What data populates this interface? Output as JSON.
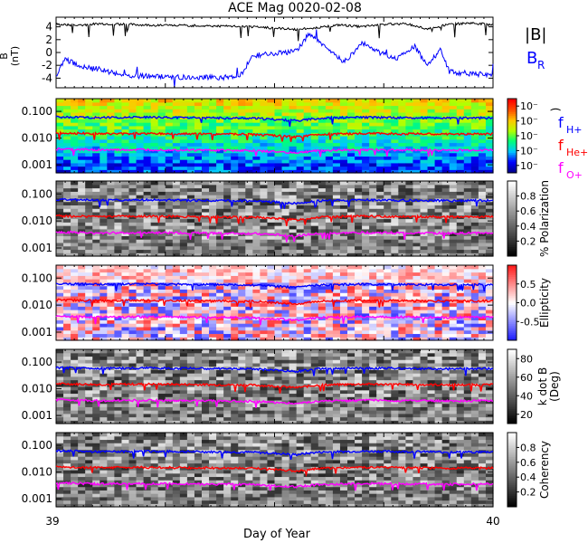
{
  "title": "ACE Mag 0020-02-08",
  "chart_data": [
    {
      "type": "line",
      "panel": "magnetic-field",
      "ylabel": [
        "B",
        "(nT)"
      ],
      "ylim": [
        -5.5,
        5.5
      ],
      "yticks": [
        4,
        2,
        0,
        -2,
        -4
      ],
      "yticklabels": [
        "4",
        "2",
        "0",
        "-2",
        "-4"
      ],
      "series": [
        {
          "name": "|B|",
          "color": "#000000",
          "x": [
            39.0,
            39.05,
            39.1,
            39.2,
            39.3,
            39.4,
            39.45,
            39.5,
            39.55,
            39.6,
            39.65,
            39.7,
            39.75,
            39.8,
            39.85,
            39.9,
            39.95,
            40.0
          ],
          "values": [
            4.4,
            4.2,
            4.5,
            4.3,
            4.2,
            4.1,
            4.0,
            3.8,
            3.6,
            3.9,
            4.3,
            4.0,
            4.4,
            4.5,
            3.7,
            4.4,
            4.6,
            4.3
          ]
        },
        {
          "name": "B",
          "subscript": "R",
          "color": "#0000ff",
          "x": [
            39.0,
            39.02,
            39.05,
            39.1,
            39.15,
            39.2,
            39.25,
            39.3,
            39.38,
            39.42,
            39.45,
            39.5,
            39.55,
            39.58,
            39.62,
            39.66,
            39.7,
            39.74,
            39.78,
            39.82,
            39.85,
            39.88,
            39.9,
            39.95,
            40.0
          ],
          "values": [
            -3.8,
            -1.0,
            -2.0,
            -2.6,
            -3.5,
            -3.7,
            -3.8,
            -3.9,
            -3.9,
            -3.8,
            -0.5,
            -0.2,
            0.2,
            3.0,
            0.5,
            -1.5,
            1.5,
            0.0,
            -1.0,
            1.0,
            -2.0,
            0.5,
            -3.0,
            -3.3,
            -3.5
          ]
        }
      ]
    },
    {
      "type": "heatmap",
      "panel": "power-spectrum",
      "ylim": [
        0.0005,
        0.3
      ],
      "yscale": "log",
      "yticklabels": [
        "0.100",
        "0.010",
        "0.001"
      ],
      "yticks": [
        0.1,
        0.01,
        0.001
      ],
      "colorbar": {
        "map": "rainbow",
        "ticklabels": [
          "10⁻",
          "10⁻",
          "10⁻",
          "10⁻",
          "10⁻"
        ],
        "label": ")"
      },
      "overlays": [
        {
          "name": "f",
          "subscript": "H+",
          "color": "#0000ff",
          "x": [
            39.0,
            39.1,
            39.2,
            39.3,
            39.4,
            39.45,
            39.5,
            39.55,
            39.6,
            39.7,
            39.8,
            39.9,
            40.0
          ],
          "values": [
            0.062,
            0.058,
            0.06,
            0.058,
            0.056,
            0.055,
            0.05,
            0.045,
            0.055,
            0.06,
            0.058,
            0.056,
            0.057
          ]
        },
        {
          "name": "f",
          "subscript": "He+",
          "color": "#ff0000",
          "x": [
            39.0,
            39.1,
            39.2,
            39.3,
            39.4,
            39.45,
            39.5,
            39.55,
            39.6,
            39.7,
            39.8,
            39.9,
            40.0
          ],
          "values": [
            0.0155,
            0.0145,
            0.015,
            0.0145,
            0.014,
            0.0138,
            0.0125,
            0.011,
            0.0138,
            0.015,
            0.0145,
            0.014,
            0.0142
          ]
        },
        {
          "name": "f",
          "subscript": "O+",
          "color": "#ff00ff",
          "x": [
            39.0,
            39.1,
            39.2,
            39.3,
            39.4,
            39.45,
            39.5,
            39.55,
            39.6,
            39.7,
            39.8,
            39.9,
            40.0
          ],
          "values": [
            0.0039,
            0.0036,
            0.0037,
            0.0036,
            0.0035,
            0.0034,
            0.0031,
            0.0028,
            0.0034,
            0.0037,
            0.0036,
            0.0035,
            0.0036
          ]
        }
      ]
    },
    {
      "type": "heatmap",
      "panel": "polarization",
      "yscale": "log",
      "yticklabels": [
        "0.100",
        "0.010",
        "0.001"
      ],
      "yticks": [
        0.1,
        0.01,
        0.001
      ],
      "colorbar": {
        "map": "gray",
        "range": [
          0,
          1
        ],
        "ticks": [
          0.2,
          0.4,
          0.6,
          0.8
        ],
        "ticklabels": [
          "0.2",
          "0.4",
          "0.6",
          "0.8"
        ],
        "label": "% Polarization"
      }
    },
    {
      "type": "heatmap",
      "panel": "ellipticity",
      "yscale": "log",
      "yticklabels": [
        "0.100",
        "0.010",
        "0.001"
      ],
      "yticks": [
        0.1,
        0.01,
        0.001
      ],
      "colorbar": {
        "map": "bluewhitered",
        "range": [
          -1,
          1
        ],
        "ticks": [
          0.5,
          0.0,
          -0.5
        ],
        "ticklabels": [
          "0.5",
          "0.0",
          "-0.5"
        ],
        "label": "Ellipticity"
      }
    },
    {
      "type": "heatmap",
      "panel": "k-dot-b",
      "yscale": "log",
      "yticklabels": [
        "0.100",
        "0.010",
        "0.001"
      ],
      "yticks": [
        0.1,
        0.01,
        0.001
      ],
      "colorbar": {
        "map": "gray",
        "range": [
          10,
          90
        ],
        "ticks": [
          80,
          60,
          40,
          20
        ],
        "ticklabels": [
          "80",
          "60",
          "40",
          "20"
        ],
        "label": [
          "k dot B",
          "(Deg)"
        ]
      }
    },
    {
      "type": "heatmap",
      "panel": "coherency",
      "yscale": "log",
      "yticklabels": [
        "0.100",
        "0.010",
        "0.001"
      ],
      "yticks": [
        0.1,
        0.01,
        0.001
      ],
      "colorbar": {
        "map": "gray",
        "range": [
          0,
          1
        ],
        "ticks": [
          0.2,
          0.4,
          0.6,
          0.8
        ],
        "ticklabels": [
          "0.2",
          "0.4",
          "0.6",
          "0.8"
        ],
        "label": "Coherency"
      }
    }
  ],
  "xaxis": {
    "label": "Day of Year",
    "ticks": [
      39,
      40
    ],
    "ticklabels": [
      "39",
      "40"
    ]
  },
  "legend": [
    {
      "label": "|B|",
      "color": "#000000"
    },
    {
      "label": "B",
      "subscript": "R",
      "color": "#0000ff"
    },
    {
      "label": "f",
      "subscript": "H+",
      "color": "#0000ff"
    },
    {
      "label": "f",
      "subscript": "He+",
      "color": "#ff0000"
    },
    {
      "label": "f",
      "subscript": "O+",
      "color": "#ff00ff"
    }
  ]
}
